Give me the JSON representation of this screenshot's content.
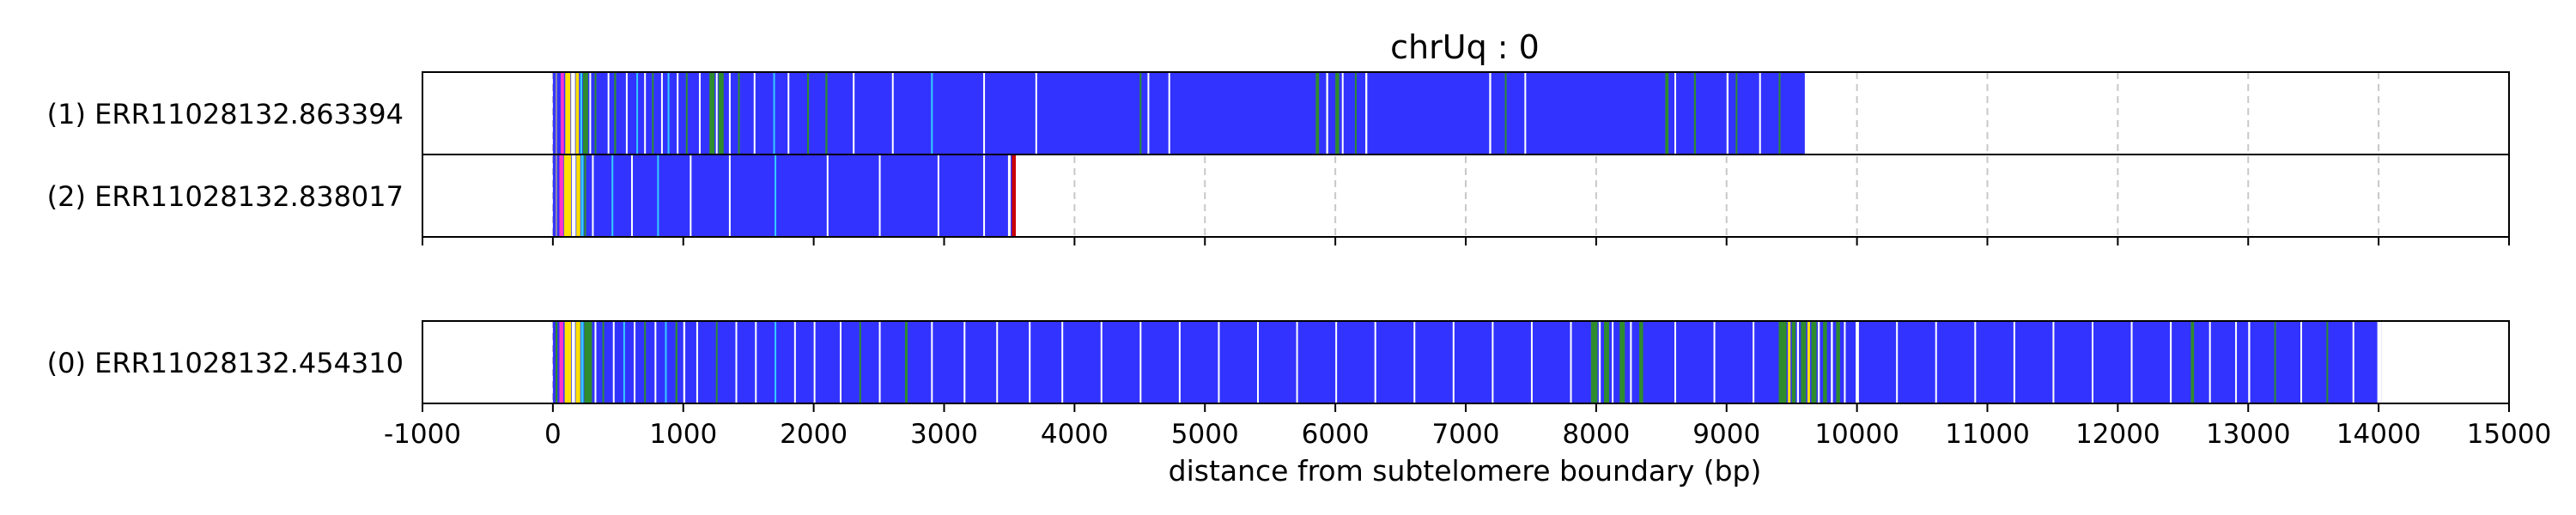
{
  "chart_data": {
    "type": "table",
    "title": "chrUq : 0",
    "xlabel": "distance from subtelomere boundary (bp)",
    "ylabel": "",
    "xlim": [
      -1000,
      15000
    ],
    "x_ticks": [
      -1000,
      0,
      1000,
      2000,
      3000,
      4000,
      5000,
      6000,
      7000,
      8000,
      9000,
      10000,
      11000,
      12000,
      13000,
      14000,
      15000
    ],
    "x_tick_labels": [
      "-1000",
      "0",
      "1000",
      "2000",
      "3000",
      "4000",
      "5000",
      "6000",
      "7000",
      "8000",
      "9000",
      "10000",
      "11000",
      "12000",
      "13000",
      "14000",
      "15000"
    ],
    "grid": "vertical dashed at each x tick",
    "colors": {
      "base": "#3333ff",
      "green": "#2e8b2e",
      "yellow": "#ffe000",
      "magenta": "#ff33cc",
      "cyan": "#33ccff",
      "white": "#ffffff",
      "grey": "#8a8ab0",
      "red": "#cc0000",
      "grid": "#c8c8c8"
    },
    "panels": [
      {
        "reads": [
          {
            "label": "(1) ERR11028132.863394",
            "start": 0,
            "end": 9600,
            "stripes": [
              {
                "x": 20,
                "w": 10,
                "c": "grey"
              },
              {
                "x": 60,
                "w": 25,
                "c": "magenta"
              },
              {
                "x": 95,
                "w": 40,
                "c": "yellow"
              },
              {
                "x": 140,
                "w": 30,
                "c": "white"
              },
              {
                "x": 175,
                "w": 25,
                "c": "yellow"
              },
              {
                "x": 210,
                "w": 15,
                "c": "cyan"
              },
              {
                "x": 230,
                "w": 40,
                "c": "green"
              },
              {
                "x": 280,
                "w": 10,
                "c": "white"
              },
              {
                "x": 320,
                "w": 10,
                "c": "green"
              },
              {
                "x": 420,
                "w": 10,
                "c": "white"
              },
              {
                "x": 470,
                "w": 15,
                "c": "green"
              },
              {
                "x": 560,
                "w": 10,
                "c": "white"
              },
              {
                "x": 640,
                "w": 10,
                "c": "cyan"
              },
              {
                "x": 700,
                "w": 10,
                "c": "white"
              },
              {
                "x": 760,
                "w": 10,
                "c": "green"
              },
              {
                "x": 830,
                "w": 10,
                "c": "white"
              },
              {
                "x": 880,
                "w": 10,
                "c": "cyan"
              },
              {
                "x": 950,
                "w": 10,
                "c": "white"
              },
              {
                "x": 1020,
                "w": 10,
                "c": "green"
              },
              {
                "x": 1120,
                "w": 10,
                "c": "white"
              },
              {
                "x": 1200,
                "w": 40,
                "c": "green"
              },
              {
                "x": 1250,
                "w": 10,
                "c": "white"
              },
              {
                "x": 1270,
                "w": 40,
                "c": "green"
              },
              {
                "x": 1350,
                "w": 10,
                "c": "white"
              },
              {
                "x": 1420,
                "w": 10,
                "c": "green"
              },
              {
                "x": 1540,
                "w": 10,
                "c": "white"
              },
              {
                "x": 1690,
                "w": 10,
                "c": "cyan"
              },
              {
                "x": 1800,
                "w": 10,
                "c": "white"
              },
              {
                "x": 1950,
                "w": 10,
                "c": "green"
              },
              {
                "x": 2090,
                "w": 15,
                "c": "green"
              },
              {
                "x": 2300,
                "w": 10,
                "c": "white"
              },
              {
                "x": 2600,
                "w": 10,
                "c": "white"
              },
              {
                "x": 2900,
                "w": 10,
                "c": "cyan"
              },
              {
                "x": 3300,
                "w": 10,
                "c": "white"
              },
              {
                "x": 3700,
                "w": 10,
                "c": "white"
              },
              {
                "x": 4500,
                "w": 10,
                "c": "green"
              },
              {
                "x": 4560,
                "w": 10,
                "c": "white"
              },
              {
                "x": 4720,
                "w": 10,
                "c": "white"
              },
              {
                "x": 5850,
                "w": 25,
                "c": "green"
              },
              {
                "x": 5930,
                "w": 15,
                "c": "white"
              },
              {
                "x": 6000,
                "w": 30,
                "c": "green"
              },
              {
                "x": 6050,
                "w": 10,
                "c": "white"
              },
              {
                "x": 6150,
                "w": 10,
                "c": "green"
              },
              {
                "x": 6230,
                "w": 15,
                "c": "white"
              },
              {
                "x": 7180,
                "w": 15,
                "c": "white"
              },
              {
                "x": 7300,
                "w": 10,
                "c": "green"
              },
              {
                "x": 7450,
                "w": 10,
                "c": "white"
              },
              {
                "x": 8530,
                "w": 25,
                "c": "green"
              },
              {
                "x": 8600,
                "w": 10,
                "c": "white"
              },
              {
                "x": 8750,
                "w": 15,
                "c": "green"
              },
              {
                "x": 9000,
                "w": 15,
                "c": "white"
              },
              {
                "x": 9070,
                "w": 10,
                "c": "green"
              },
              {
                "x": 9250,
                "w": 10,
                "c": "white"
              },
              {
                "x": 9400,
                "w": 10,
                "c": "green"
              }
            ]
          },
          {
            "label": "(2) ERR11028132.838017",
            "start": 0,
            "end": 3550,
            "stripes": [
              {
                "x": 20,
                "w": 10,
                "c": "grey"
              },
              {
                "x": 50,
                "w": 30,
                "c": "magenta"
              },
              {
                "x": 85,
                "w": 55,
                "c": "yellow"
              },
              {
                "x": 145,
                "w": 30,
                "c": "white"
              },
              {
                "x": 180,
                "w": 30,
                "c": "yellow"
              },
              {
                "x": 215,
                "w": 20,
                "c": "cyan"
              },
              {
                "x": 240,
                "w": 15,
                "c": "green"
              },
              {
                "x": 300,
                "w": 10,
                "c": "white"
              },
              {
                "x": 450,
                "w": 10,
                "c": "cyan"
              },
              {
                "x": 600,
                "w": 10,
                "c": "white"
              },
              {
                "x": 800,
                "w": 10,
                "c": "cyan"
              },
              {
                "x": 1050,
                "w": 10,
                "c": "white"
              },
              {
                "x": 1350,
                "w": 10,
                "c": "white"
              },
              {
                "x": 1700,
                "w": 10,
                "c": "cyan"
              },
              {
                "x": 2100,
                "w": 10,
                "c": "white"
              },
              {
                "x": 2500,
                "w": 10,
                "c": "white"
              },
              {
                "x": 2950,
                "w": 10,
                "c": "white"
              },
              {
                "x": 3300,
                "w": 10,
                "c": "white"
              },
              {
                "x": 3490,
                "w": 20,
                "c": "white"
              },
              {
                "x": 3520,
                "w": 30,
                "c": "red"
              }
            ]
          }
        ]
      },
      {
        "reads": [
          {
            "label": "(0) ERR11028132.454310",
            "start": 0,
            "end": 14020,
            "stripes": [
              {
                "x": 20,
                "w": 15,
                "c": "green"
              },
              {
                "x": 50,
                "w": 30,
                "c": "magenta"
              },
              {
                "x": 90,
                "w": 50,
                "c": "yellow"
              },
              {
                "x": 145,
                "w": 25,
                "c": "white"
              },
              {
                "x": 175,
                "w": 35,
                "c": "yellow"
              },
              {
                "x": 215,
                "w": 20,
                "c": "cyan"
              },
              {
                "x": 240,
                "w": 60,
                "c": "green"
              },
              {
                "x": 320,
                "w": 10,
                "c": "white"
              },
              {
                "x": 380,
                "w": 10,
                "c": "green"
              },
              {
                "x": 460,
                "w": 10,
                "c": "white"
              },
              {
                "x": 540,
                "w": 10,
                "c": "cyan"
              },
              {
                "x": 620,
                "w": 10,
                "c": "white"
              },
              {
                "x": 700,
                "w": 10,
                "c": "green"
              },
              {
                "x": 780,
                "w": 10,
                "c": "white"
              },
              {
                "x": 860,
                "w": 10,
                "c": "cyan"
              },
              {
                "x": 940,
                "w": 15,
                "c": "green"
              },
              {
                "x": 1000,
                "w": 15,
                "c": "white"
              },
              {
                "x": 1100,
                "w": 10,
                "c": "white"
              },
              {
                "x": 1250,
                "w": 10,
                "c": "green"
              },
              {
                "x": 1400,
                "w": 10,
                "c": "white"
              },
              {
                "x": 1550,
                "w": 10,
                "c": "white"
              },
              {
                "x": 1700,
                "w": 10,
                "c": "cyan"
              },
              {
                "x": 1850,
                "w": 10,
                "c": "white"
              },
              {
                "x": 2000,
                "w": 10,
                "c": "white"
              },
              {
                "x": 2200,
                "w": 10,
                "c": "white"
              },
              {
                "x": 2350,
                "w": 10,
                "c": "green"
              },
              {
                "x": 2500,
                "w": 10,
                "c": "white"
              },
              {
                "x": 2700,
                "w": 20,
                "c": "green"
              },
              {
                "x": 2900,
                "w": 10,
                "c": "white"
              },
              {
                "x": 3150,
                "w": 10,
                "c": "white"
              },
              {
                "x": 3400,
                "w": 10,
                "c": "white"
              },
              {
                "x": 3650,
                "w": 10,
                "c": "white"
              },
              {
                "x": 3900,
                "w": 10,
                "c": "white"
              },
              {
                "x": 4200,
                "w": 10,
                "c": "white"
              },
              {
                "x": 4500,
                "w": 10,
                "c": "white"
              },
              {
                "x": 4800,
                "w": 10,
                "c": "white"
              },
              {
                "x": 5100,
                "w": 10,
                "c": "white"
              },
              {
                "x": 5400,
                "w": 10,
                "c": "white"
              },
              {
                "x": 5700,
                "w": 10,
                "c": "white"
              },
              {
                "x": 6000,
                "w": 10,
                "c": "white"
              },
              {
                "x": 6300,
                "w": 10,
                "c": "white"
              },
              {
                "x": 6600,
                "w": 10,
                "c": "white"
              },
              {
                "x": 6900,
                "w": 10,
                "c": "white"
              },
              {
                "x": 7200,
                "w": 10,
                "c": "white"
              },
              {
                "x": 7500,
                "w": 10,
                "c": "white"
              },
              {
                "x": 7800,
                "w": 10,
                "c": "white"
              },
              {
                "x": 7960,
                "w": 50,
                "c": "green"
              },
              {
                "x": 8020,
                "w": 15,
                "c": "white"
              },
              {
                "x": 8060,
                "w": 40,
                "c": "green"
              },
              {
                "x": 8120,
                "w": 10,
                "c": "white"
              },
              {
                "x": 8180,
                "w": 40,
                "c": "green"
              },
              {
                "x": 8260,
                "w": 10,
                "c": "white"
              },
              {
                "x": 8330,
                "w": 30,
                "c": "green"
              },
              {
                "x": 8600,
                "w": 10,
                "c": "white"
              },
              {
                "x": 8900,
                "w": 10,
                "c": "white"
              },
              {
                "x": 9200,
                "w": 10,
                "c": "white"
              },
              {
                "x": 9400,
                "w": 60,
                "c": "green"
              },
              {
                "x": 9470,
                "w": 20,
                "c": "yellow"
              },
              {
                "x": 9500,
                "w": 30,
                "c": "green"
              },
              {
                "x": 9540,
                "w": 15,
                "c": "white"
              },
              {
                "x": 9570,
                "w": 40,
                "c": "green"
              },
              {
                "x": 9620,
                "w": 20,
                "c": "yellow"
              },
              {
                "x": 9650,
                "w": 40,
                "c": "green"
              },
              {
                "x": 9700,
                "w": 15,
                "c": "white"
              },
              {
                "x": 9740,
                "w": 30,
                "c": "green"
              },
              {
                "x": 9800,
                "w": 15,
                "c": "white"
              },
              {
                "x": 9840,
                "w": 30,
                "c": "green"
              },
              {
                "x": 9900,
                "w": 10,
                "c": "white"
              },
              {
                "x": 9990,
                "w": 25,
                "c": "white"
              },
              {
                "x": 10300,
                "w": 10,
                "c": "white"
              },
              {
                "x": 10600,
                "w": 10,
                "c": "white"
              },
              {
                "x": 10900,
                "w": 10,
                "c": "white"
              },
              {
                "x": 11200,
                "w": 10,
                "c": "white"
              },
              {
                "x": 11500,
                "w": 10,
                "c": "white"
              },
              {
                "x": 11800,
                "w": 10,
                "c": "white"
              },
              {
                "x": 12100,
                "w": 10,
                "c": "white"
              },
              {
                "x": 12400,
                "w": 10,
                "c": "white"
              },
              {
                "x": 12560,
                "w": 25,
                "c": "green"
              },
              {
                "x": 12700,
                "w": 10,
                "c": "white"
              },
              {
                "x": 12900,
                "w": 10,
                "c": "white"
              },
              {
                "x": 13000,
                "w": 15,
                "c": "white"
              },
              {
                "x": 13200,
                "w": 10,
                "c": "green"
              },
              {
                "x": 13400,
                "w": 10,
                "c": "white"
              },
              {
                "x": 13600,
                "w": 10,
                "c": "green"
              },
              {
                "x": 13800,
                "w": 10,
                "c": "white"
              },
              {
                "x": 13990,
                "w": 30,
                "c": "white"
              }
            ]
          }
        ]
      }
    ]
  }
}
